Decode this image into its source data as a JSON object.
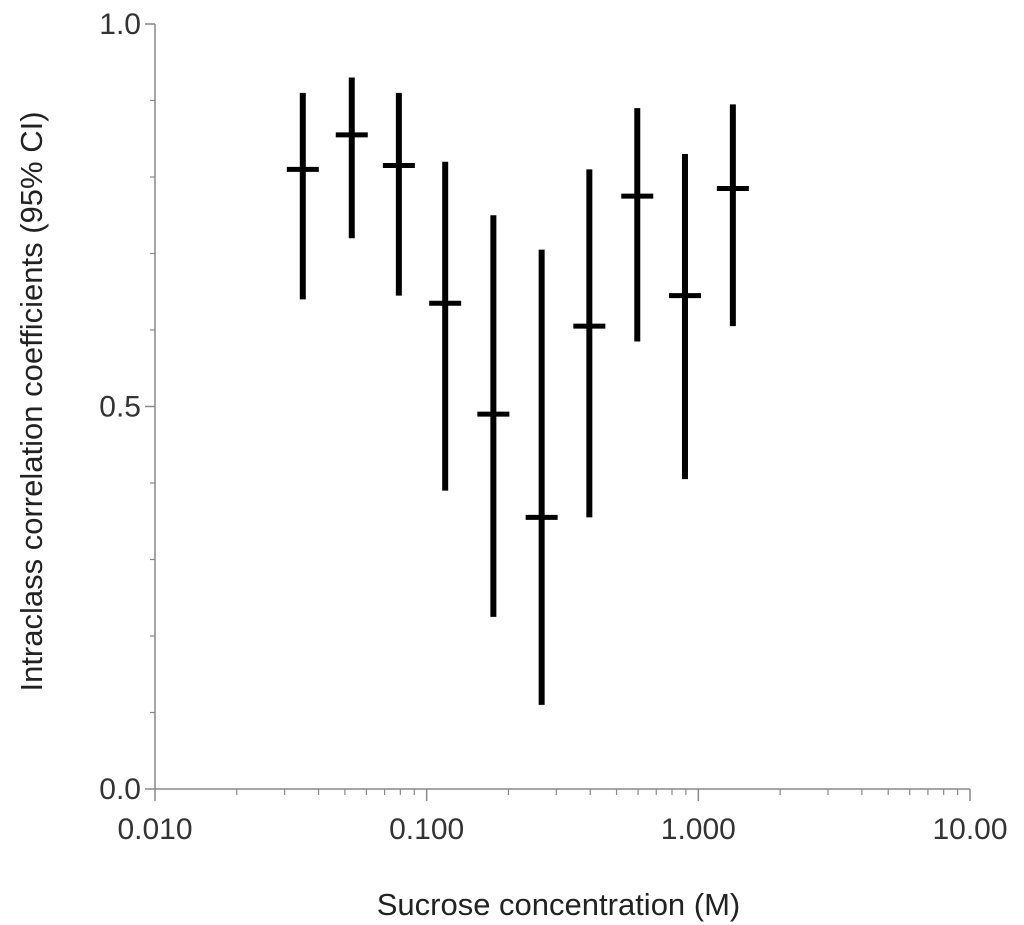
{
  "chart_data": {
    "type": "scatter",
    "xlabel": "Sucrose concentration (M)",
    "ylabel": "Intraclass correlation coefficients (95% CI)",
    "xscale": "log",
    "xlim": [
      0.01,
      10
    ],
    "ylim": [
      0,
      1
    ],
    "x_ticks": [
      {
        "value": 0.01,
        "label": "0.010"
      },
      {
        "value": 0.1,
        "label": "0.100"
      },
      {
        "value": 1,
        "label": "1.000"
      },
      {
        "value": 10,
        "label": "10.00"
      }
    ],
    "y_ticks": [
      {
        "value": 0,
        "label": "0.0"
      },
      {
        "value": 0.5,
        "label": "0.5"
      },
      {
        "value": 1,
        "label": "1.0"
      }
    ],
    "grid": false,
    "points": [
      {
        "x": 0.035,
        "y": 0.81,
        "lower": 0.64,
        "upper": 0.91
      },
      {
        "x": 0.053,
        "y": 0.855,
        "lower": 0.72,
        "upper": 0.93
      },
      {
        "x": 0.079,
        "y": 0.815,
        "lower": 0.645,
        "upper": 0.91
      },
      {
        "x": 0.117,
        "y": 0.635,
        "lower": 0.39,
        "upper": 0.82
      },
      {
        "x": 0.176,
        "y": 0.49,
        "lower": 0.225,
        "upper": 0.75
      },
      {
        "x": 0.265,
        "y": 0.355,
        "lower": 0.11,
        "upper": 0.705
      },
      {
        "x": 0.397,
        "y": 0.605,
        "lower": 0.355,
        "upper": 0.81
      },
      {
        "x": 0.596,
        "y": 0.775,
        "lower": 0.585,
        "upper": 0.89
      },
      {
        "x": 0.893,
        "y": 0.645,
        "lower": 0.405,
        "upper": 0.83
      },
      {
        "x": 1.34,
        "y": 0.785,
        "lower": 0.605,
        "upper": 0.895
      }
    ],
    "colors": {
      "marks": "#000000",
      "axis": "#888888",
      "text": "#333333"
    }
  }
}
